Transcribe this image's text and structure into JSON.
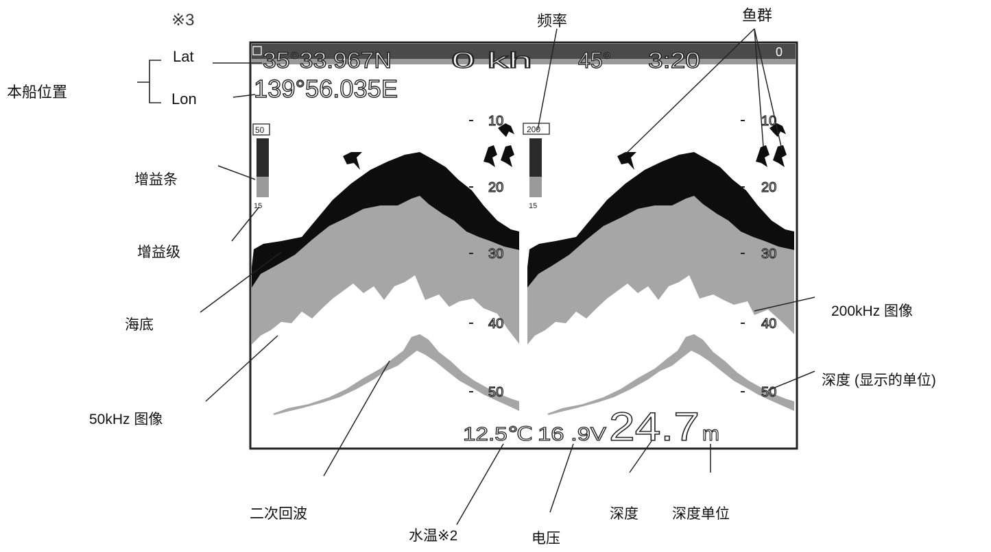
{
  "annotations": {
    "note_3": "※3",
    "position": "本船位置",
    "lat": "Lat",
    "lon": "Lon",
    "frequency": "频率",
    "fish_school": "鱼群",
    "gain_bar": "增益条",
    "gain_level": "增益级",
    "seabed": "海底",
    "image_50k": "50kHz  图像",
    "second_echo": "二次回波",
    "water_temp": "水温※2",
    "voltage": "电压",
    "depth": "深度",
    "depth_unit": "深度单位",
    "image_200k": "200kHz  图像",
    "depth_scale_unit": "深度 (显示的单位)"
  },
  "screen": {
    "lat_value": "35°33.967N",
    "lon_value": "139°56.035E",
    "speed": "0 kh",
    "heading": "45°",
    "time": "3:20",
    "corner_value": "0",
    "left_freq": "50",
    "right_freq": "200",
    "gain_left": "15",
    "gain_right": "15",
    "depth_scale": [
      "10",
      "20",
      "30",
      "40",
      "50"
    ],
    "water_temp_value": "12.5℃",
    "voltage_value": "16 .9V",
    "depth_value": "24.7",
    "depth_unit_value": "m"
  },
  "colors": {
    "seabed_black": "#0d0d0d",
    "echo_gray": "#a6a6a6",
    "frame": "#222222",
    "topbar": "#4a4a4a"
  },
  "icons": [
    "fish-icon"
  ]
}
